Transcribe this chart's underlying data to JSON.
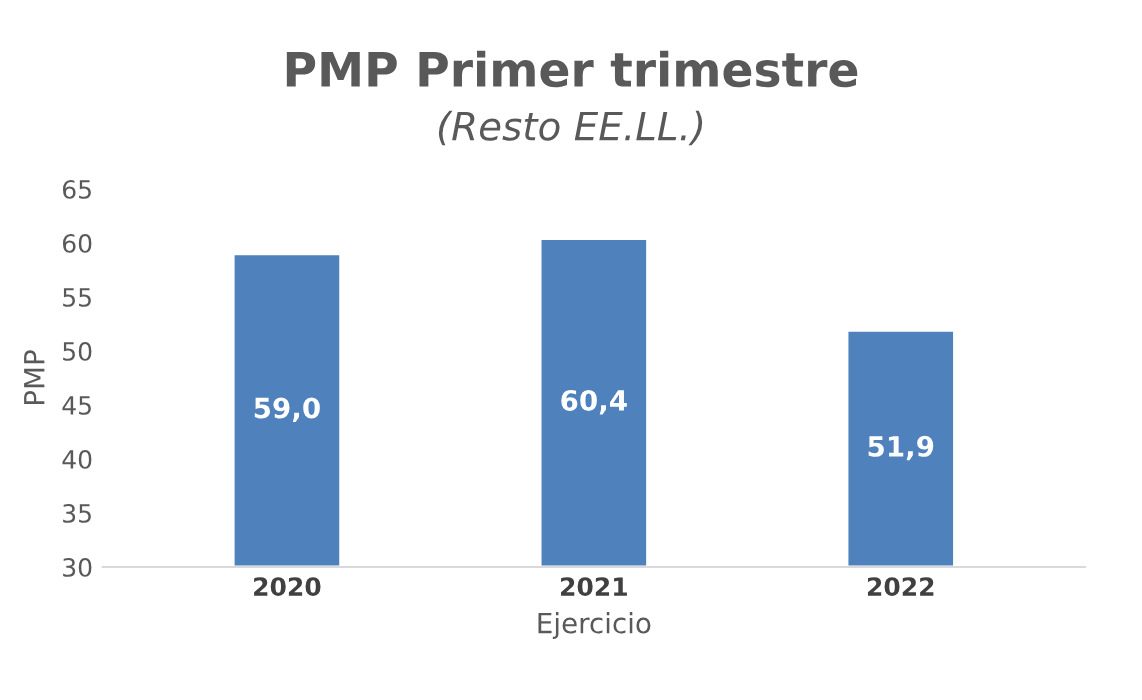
{
  "chart_data": {
    "type": "bar",
    "title": "PMP Primer trimestre",
    "subtitle": "(Resto EE.LL.)",
    "xlabel": "Ejercicio",
    "ylabel": "PMP",
    "categories": [
      "2020",
      "2021",
      "2022"
    ],
    "values": [
      59.0,
      60.4,
      51.9
    ],
    "value_labels": [
      "59,0",
      "60,4",
      "51,9"
    ],
    "color": "#4f81bd",
    "ylim": [
      30,
      65
    ],
    "yticks": [
      30,
      35,
      40,
      45,
      50,
      55,
      60,
      65
    ],
    "grid": false,
    "legend": false
  }
}
